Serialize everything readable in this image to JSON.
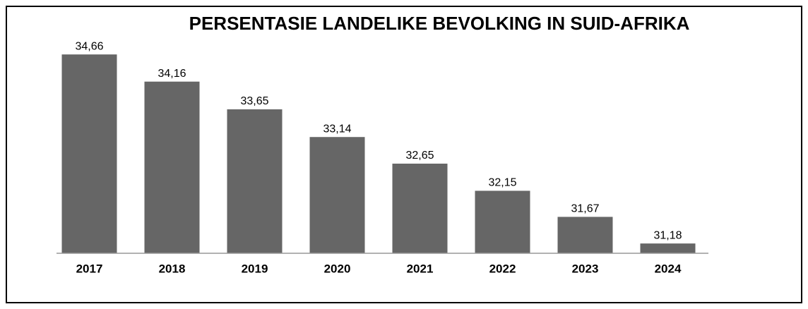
{
  "chart_data": {
    "type": "bar",
    "title": "PERSENTASIE LANDELIKE BEVOLKING IN SUID-AFRIKA",
    "categories": [
      "2017",
      "2018",
      "2019",
      "2020",
      "2021",
      "2022",
      "2023",
      "2024"
    ],
    "values": [
      34.66,
      34.16,
      33.65,
      33.14,
      32.65,
      32.15,
      31.67,
      31.18
    ],
    "value_labels": [
      "34,66",
      "34,16",
      "33,65",
      "33,14",
      "32,65",
      "32,15",
      "31,67",
      "31,18"
    ],
    "color": "#666666",
    "ylim": [
      31,
      35
    ]
  }
}
